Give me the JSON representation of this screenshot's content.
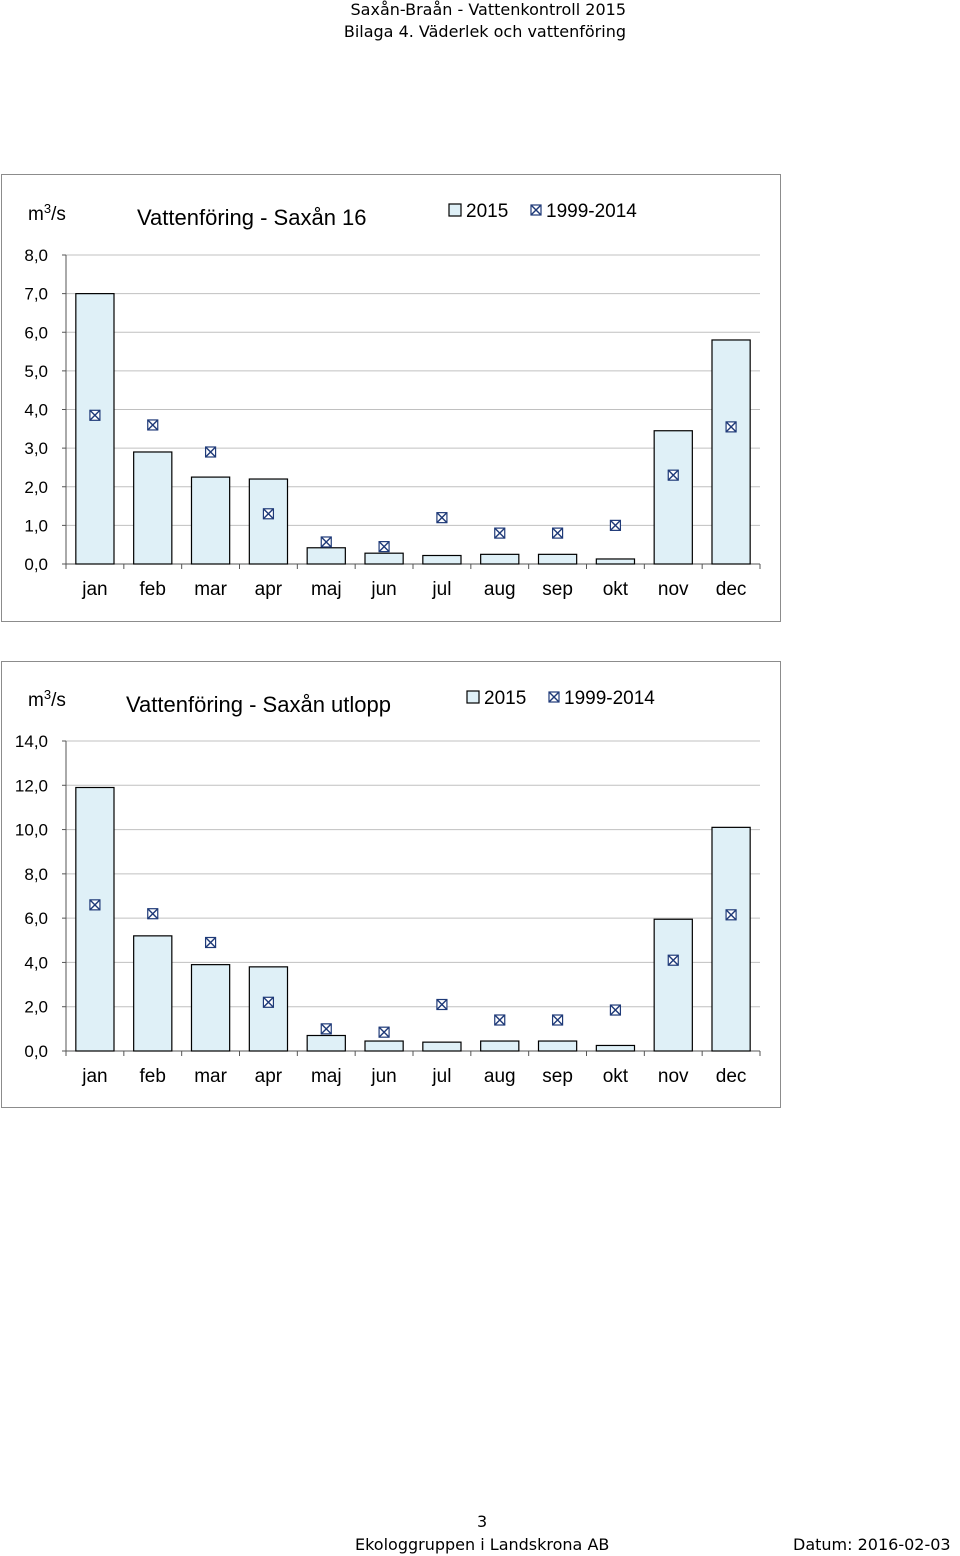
{
  "header": {
    "line1": "Saxån-Braån - Vattenkontroll 2015",
    "line2": "Bilaga 4. Väderlek och vattenföring"
  },
  "footer": {
    "page_number": "3",
    "company": "Ekologgruppen i Landskrona AB",
    "date": "Datum: 2016-02-03"
  },
  "colors": {
    "bar_fill": "#dff0f7",
    "bar_stroke": "#000000",
    "marker": "#1f3a78",
    "grid": "#c0c0c0"
  },
  "chart_data": [
    {
      "type": "bar",
      "title": "Vattenföring - Saxån 16",
      "ylabel_base": "m",
      "ylabel_sup": "3",
      "ylabel_unit": "/s",
      "ylim": [
        0,
        8
      ],
      "yticks": [
        "0,0",
        "1,0",
        "2,0",
        "3,0",
        "4,0",
        "5,0",
        "6,0",
        "7,0",
        "8,0"
      ],
      "ytick_values": [
        0,
        1,
        2,
        3,
        4,
        5,
        6,
        7,
        8
      ],
      "categories": [
        "jan",
        "feb",
        "mar",
        "apr",
        "maj",
        "jun",
        "jul",
        "aug",
        "sep",
        "okt",
        "nov",
        "dec"
      ],
      "grid": true,
      "legend_position": "top-right",
      "series": [
        {
          "name": "2015",
          "kind": "bar",
          "values": [
            7.0,
            2.9,
            2.25,
            2.2,
            0.42,
            0.28,
            0.22,
            0.25,
            0.25,
            0.13,
            3.45,
            5.8
          ]
        },
        {
          "name": "1999-2014",
          "kind": "marker",
          "values": [
            3.85,
            3.6,
            2.9,
            1.3,
            0.57,
            0.45,
            1.2,
            0.8,
            0.8,
            1.0,
            2.3,
            3.55
          ]
        }
      ]
    },
    {
      "type": "bar",
      "title": "Vattenföring - Saxån utlopp",
      "ylabel_base": "m",
      "ylabel_sup": "3",
      "ylabel_unit": "/s",
      "ylim": [
        0,
        14
      ],
      "yticks": [
        "0,0",
        "2,0",
        "4,0",
        "6,0",
        "8,0",
        "10,0",
        "12,0",
        "14,0"
      ],
      "ytick_values": [
        0,
        2,
        4,
        6,
        8,
        10,
        12,
        14
      ],
      "categories": [
        "jan",
        "feb",
        "mar",
        "apr",
        "maj",
        "jun",
        "jul",
        "aug",
        "sep",
        "okt",
        "nov",
        "dec"
      ],
      "grid": true,
      "legend_position": "top-right",
      "series": [
        {
          "name": "2015",
          "kind": "bar",
          "values": [
            11.9,
            5.2,
            3.9,
            3.8,
            0.7,
            0.45,
            0.4,
            0.45,
            0.45,
            0.25,
            5.95,
            10.1
          ]
        },
        {
          "name": "1999-2014",
          "kind": "marker",
          "values": [
            6.6,
            6.2,
            4.9,
            2.2,
            1.0,
            0.85,
            2.1,
            1.4,
            1.4,
            1.85,
            4.1,
            6.15
          ]
        }
      ]
    }
  ]
}
